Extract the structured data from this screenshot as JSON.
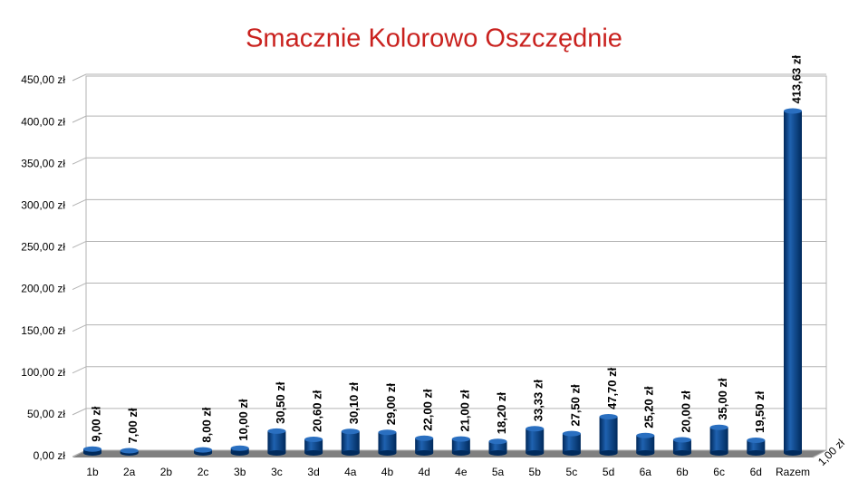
{
  "chart_data": {
    "type": "bar",
    "title": "Smacznie Kolorowo Oszczędnie",
    "categories": [
      "1b",
      "2a",
      "2b",
      "2c",
      "3b",
      "3c",
      "3d",
      "4a",
      "4b",
      "4d",
      "4e",
      "5a",
      "5b",
      "5c",
      "5d",
      "6a",
      "6b",
      "6c",
      "6d",
      "Razem"
    ],
    "values": [
      9,
      7,
      null,
      8,
      10,
      30.5,
      20.6,
      30.1,
      29,
      22,
      21,
      18.2,
      33.33,
      27.5,
      47.7,
      25.2,
      20,
      35,
      19.5,
      413.63
    ],
    "value_labels": [
      "9,00 zł",
      "7,00 zł",
      null,
      "8,00 zł",
      "10,00 zł",
      "30,50 zł",
      "20,60 zł",
      "30,10 zł",
      "29,00 zł",
      "22,00 zł",
      "21,00 zł",
      "18,20 zł",
      "33,33 zł",
      "27,50 zł",
      "47,70 zł",
      "25,20 zł",
      "20,00 zł",
      "35,00 zł",
      "19,50 zł",
      "413,63 zł"
    ],
    "color": "#004586",
    "ylim": [
      0,
      450
    ],
    "yticks": [
      {
        "value": 0,
        "label": "0,00 zł"
      },
      {
        "value": 50,
        "label": "50,00 zł"
      },
      {
        "value": 100,
        "label": "100,00 zł"
      },
      {
        "value": 150,
        "label": "150,00 zł"
      },
      {
        "value": 200,
        "label": "200,00 zł"
      },
      {
        "value": 250,
        "label": "250,00 zł"
      },
      {
        "value": 300,
        "label": "300,00 zł"
      },
      {
        "value": 350,
        "label": "350,00 zł"
      },
      {
        "value": 400,
        "label": "400,00 zł"
      },
      {
        "value": 450,
        "label": "450,00 zł"
      }
    ],
    "depth_axis_label": "1,00 zł",
    "grid": true
  }
}
